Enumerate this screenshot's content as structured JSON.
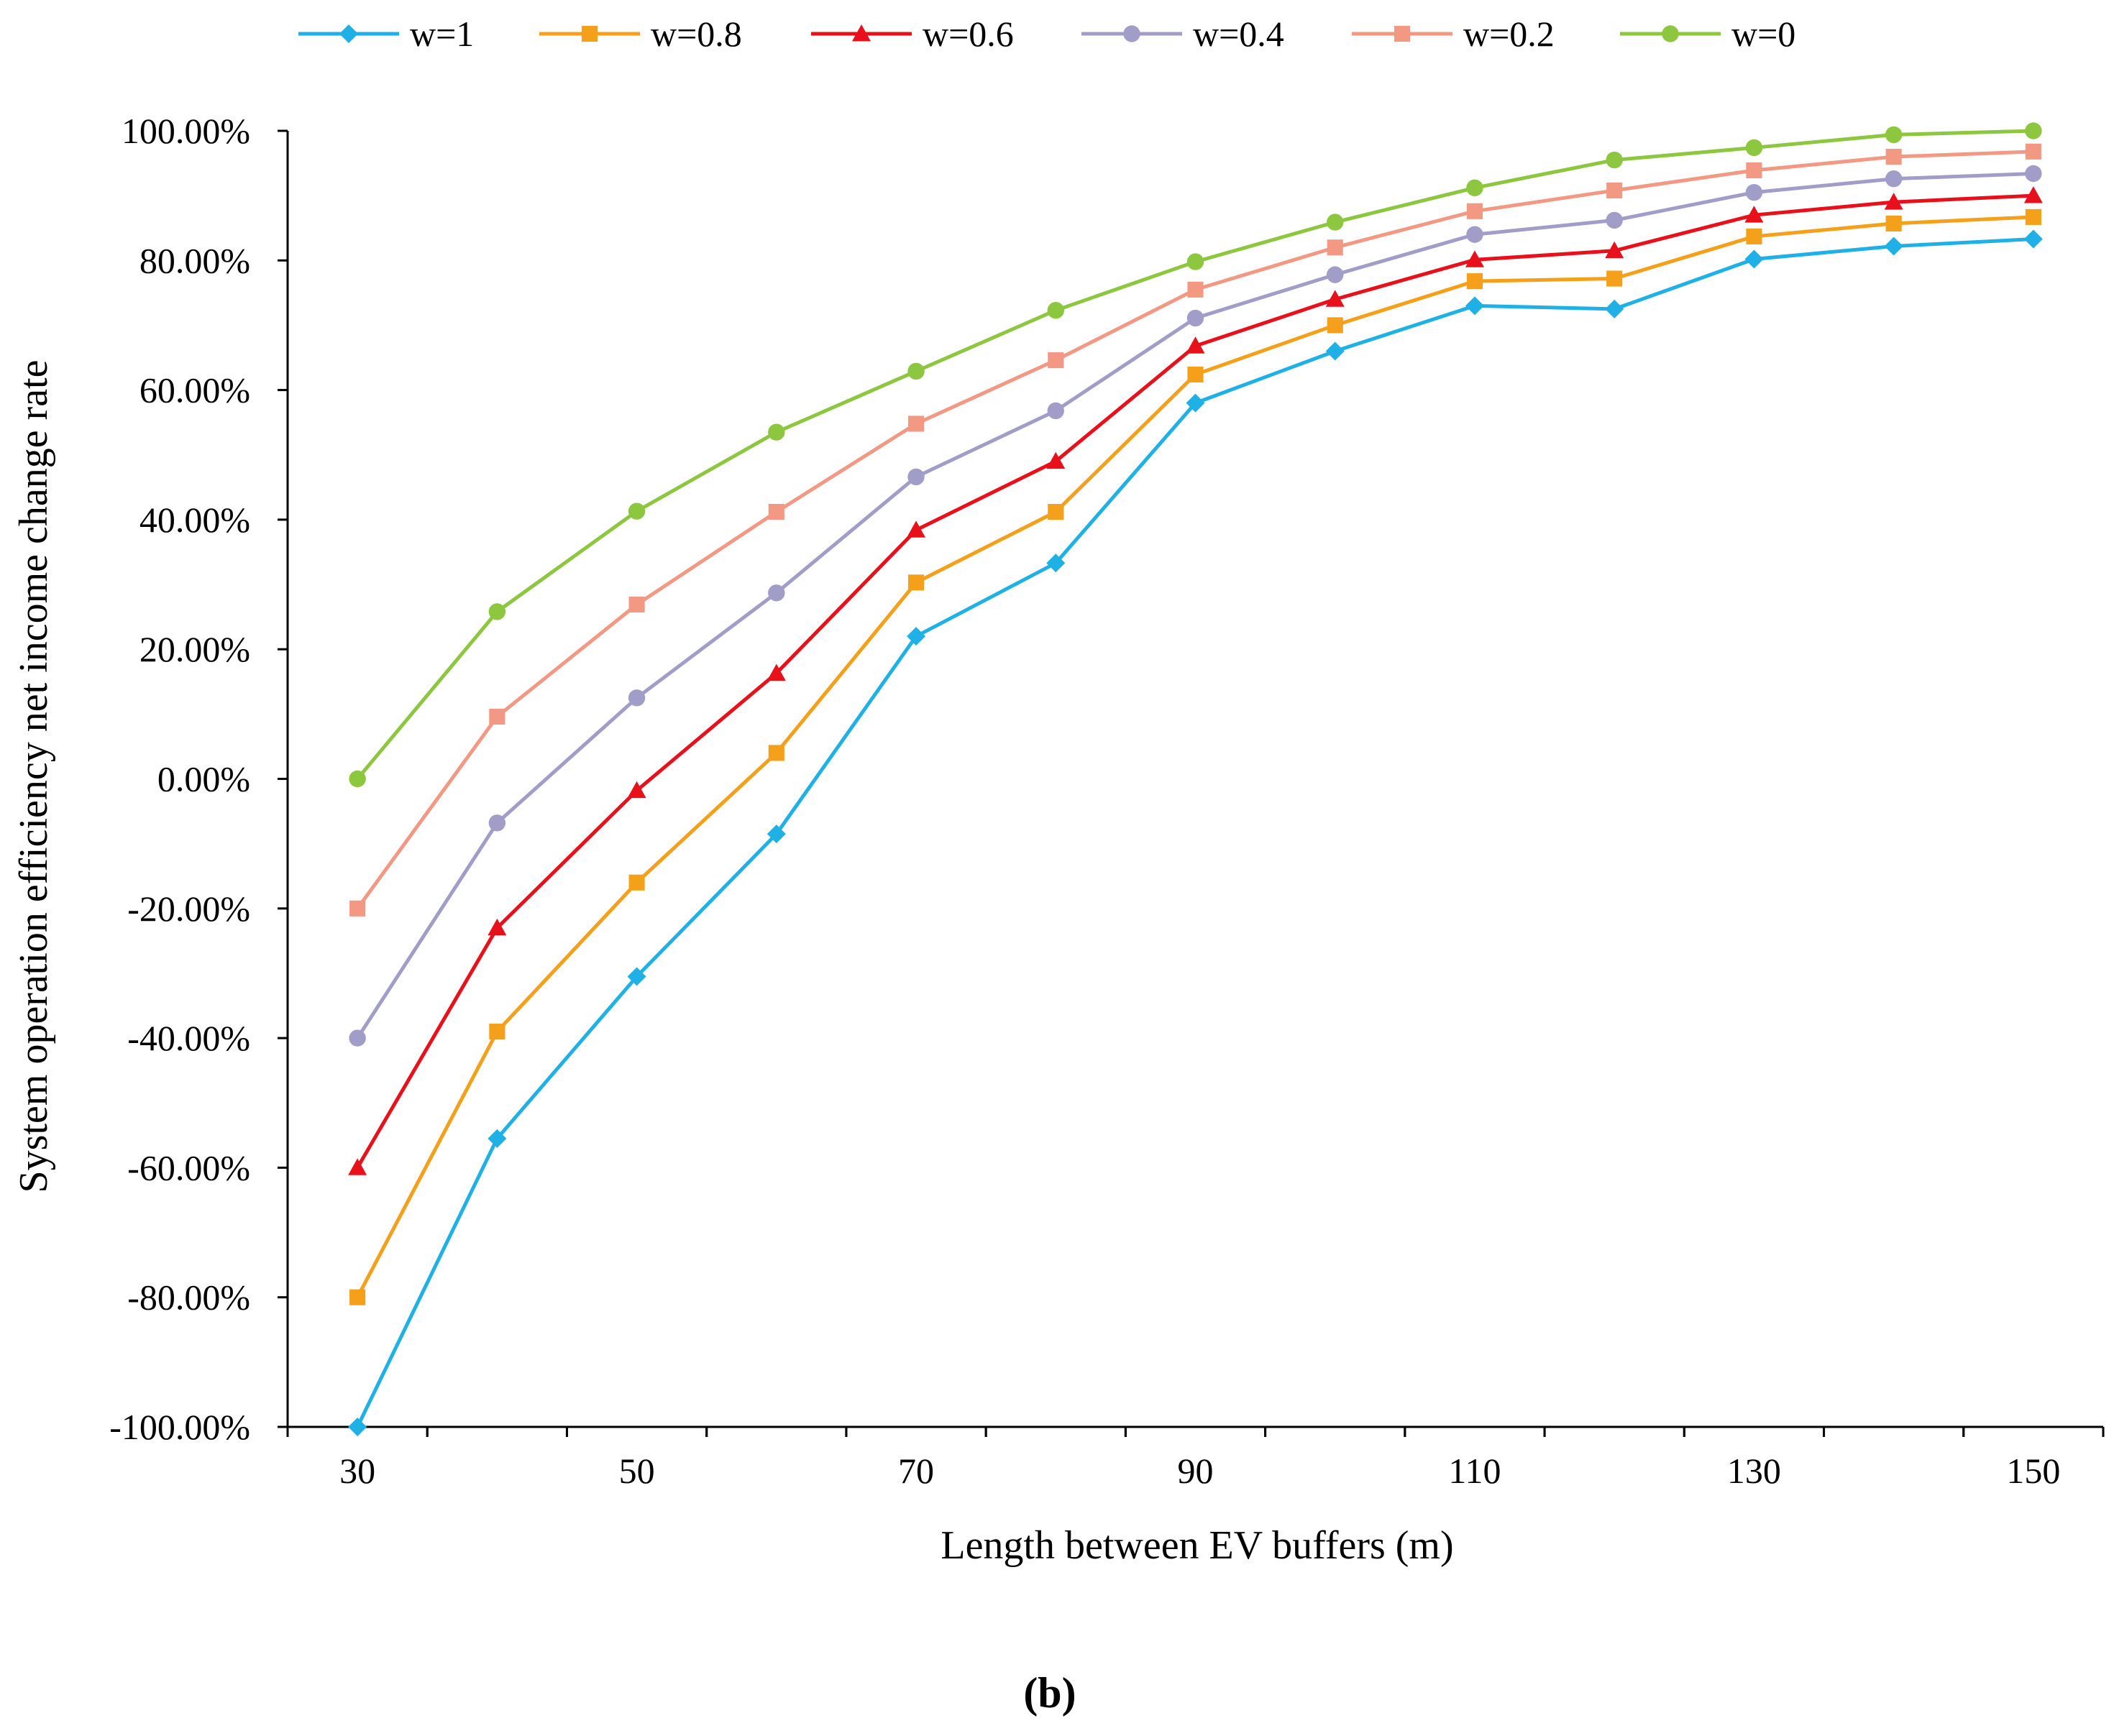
{
  "chart_data": {
    "type": "line",
    "title": "",
    "xlabel": "Length between EV buffers (m)",
    "ylabel": "System operation efficiency net income change rate",
    "xlim": [
      25,
      155
    ],
    "ylim": [
      -100,
      100
    ],
    "x": [
      30,
      40,
      50,
      60,
      70,
      80,
      90,
      100,
      110,
      120,
      130,
      140,
      150
    ],
    "x_tick_labels": [
      "30",
      "50",
      "70",
      "90",
      "110",
      "130",
      "150"
    ],
    "y_tick_labels": [
      "100.00%",
      "80.00%",
      "60.00%",
      "40.00%",
      "20.00%",
      "0.00%",
      "-20.00%",
      "-40.00%",
      "-60.00%",
      "-80.00%",
      "-100.00%"
    ],
    "legend_position": "top",
    "series": [
      {
        "name": "w=1",
        "color": "#1fb1e6",
        "marker": "diamond",
        "values": [
          -100,
          -55.5,
          -30.5,
          -8.5,
          22,
          33.3,
          58,
          66,
          73,
          72.5,
          80.2,
          82.2,
          83.3
        ]
      },
      {
        "name": "w=0.8",
        "color": "#f5a01a",
        "marker": "square",
        "values": [
          -80,
          -39,
          -16,
          4,
          30.3,
          41.2,
          62.4,
          70,
          76.8,
          77.2,
          83.7,
          85.7,
          86.7
        ]
      },
      {
        "name": "w=0.6",
        "color": "#e8111b",
        "marker": "triangle",
        "values": [
          -60,
          -23,
          -1.8,
          16.3,
          38.4,
          49,
          66.8,
          74,
          80.1,
          81.5,
          87,
          89,
          90
        ]
      },
      {
        "name": "w=0.4",
        "color": "#a19dc9",
        "marker": "circle",
        "values": [
          -40,
          -6.8,
          12.5,
          28.7,
          46.6,
          56.8,
          71.1,
          77.8,
          84,
          86.2,
          90.5,
          92.6,
          93.4
        ]
      },
      {
        "name": "w=0.2",
        "color": "#f29883",
        "marker": "square",
        "values": [
          -20,
          9.6,
          26.9,
          41.2,
          54.8,
          64.6,
          75.5,
          82,
          87.6,
          90.8,
          93.9,
          96,
          96.8
        ]
      },
      {
        "name": "w=0",
        "color": "#8dc63f",
        "marker": "circle",
        "values": [
          0,
          25.8,
          41.3,
          53.5,
          62.9,
          72.3,
          79.8,
          85.9,
          91.2,
          95.5,
          97.4,
          99.4,
          100
        ]
      }
    ],
    "caption": "(b)"
  }
}
